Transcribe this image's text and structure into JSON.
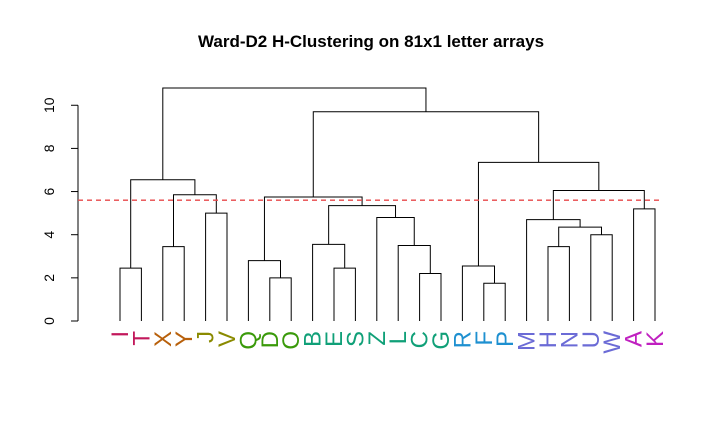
{
  "chart_data": {
    "type": "dendrogram",
    "title": "Ward-D2 H-Clustering on 81x1 letter arrays",
    "xlabel": "",
    "ylabel": "",
    "ylim": [
      0,
      10.8
    ],
    "yticks": [
      0,
      2,
      4,
      6,
      8,
      10
    ],
    "cut_height": 5.6,
    "cut_color": "#e8474a",
    "leaves": [
      {
        "label": "I",
        "color": "#c2185b"
      },
      {
        "label": "T",
        "color": "#c2185b"
      },
      {
        "label": "X",
        "color": "#b8600b"
      },
      {
        "label": "Y",
        "color": "#b8600b"
      },
      {
        "label": "J",
        "color": "#8a8a00"
      },
      {
        "label": "V",
        "color": "#8a8a00"
      },
      {
        "label": "Q",
        "color": "#3a9a0a"
      },
      {
        "label": "D",
        "color": "#3a9a0a"
      },
      {
        "label": "O",
        "color": "#3a9a0a"
      },
      {
        "label": "B",
        "color": "#10a078"
      },
      {
        "label": "E",
        "color": "#10a078"
      },
      {
        "label": "S",
        "color": "#10a078"
      },
      {
        "label": "Z",
        "color": "#10a078"
      },
      {
        "label": "L",
        "color": "#10a078"
      },
      {
        "label": "C",
        "color": "#10a078"
      },
      {
        "label": "G",
        "color": "#10a078"
      },
      {
        "label": "R",
        "color": "#1e90d0"
      },
      {
        "label": "F",
        "color": "#1e90d0"
      },
      {
        "label": "P",
        "color": "#1e90d0"
      },
      {
        "label": "M",
        "color": "#6b6bd6"
      },
      {
        "label": "H",
        "color": "#6b6bd6"
      },
      {
        "label": "N",
        "color": "#6b6bd6"
      },
      {
        "label": "U",
        "color": "#6b6bd6"
      },
      {
        "label": "W",
        "color": "#6b6bd6"
      },
      {
        "label": "A",
        "color": "#c020c0"
      },
      {
        "label": "K",
        "color": "#c020c0"
      }
    ],
    "merges": [
      {
        "left": "I",
        "right": "T",
        "height": 2.45
      },
      {
        "left": "Y",
        "right": "J",
        "height": 5.0
      },
      {
        "left": "X",
        "right": "m2",
        "height": 3.45
      },
      {
        "left": "m3",
        "right": "m3b",
        "height": 5.85
      },
      {
        "left": "m1",
        "right": "m4",
        "height": 6.55
      },
      {
        "left": "D",
        "right": "O",
        "height": 2.0
      },
      {
        "left": "Q",
        "right": "m6",
        "height": 2.8
      },
      {
        "left": "S",
        "right": "Z",
        "height": 2.45
      },
      {
        "left": "E",
        "right": "m8",
        "height": 3.55
      },
      {
        "left": "G",
        "right": "R",
        "height": 2.2
      },
      {
        "left": "C",
        "right": "m10",
        "height": 3.5
      },
      {
        "left": "L",
        "right": "m11",
        "height": 4.8
      },
      {
        "left": "m9",
        "right": "m12",
        "height": 5.35
      },
      {
        "left": "m7",
        "right": "m13",
        "height": 5.75
      },
      {
        "left": "m5",
        "right": "m14",
        "height": 10.8
      },
      {
        "left": "P",
        "right": "M",
        "height": 1.75
      },
      {
        "left": "F",
        "right": "m16",
        "height": 2.55
      },
      {
        "left": "N",
        "right": "U",
        "height": 3.45
      },
      {
        "left": "W",
        "right": "A",
        "height": 4.0
      },
      {
        "left": "m18",
        "right": "m19",
        "height": 4.35
      },
      {
        "left": "H",
        "right": "m20",
        "height": 4.7
      },
      {
        "left": "K",
        "right": "K2",
        "height": 5.2
      },
      {
        "left": "m21",
        "right": "m22",
        "height": 6.05
      },
      {
        "left": "m17",
        "right": "m23",
        "height": 7.35
      },
      {
        "left": "m14b",
        "right": "m24",
        "height": 9.7
      }
    ]
  }
}
